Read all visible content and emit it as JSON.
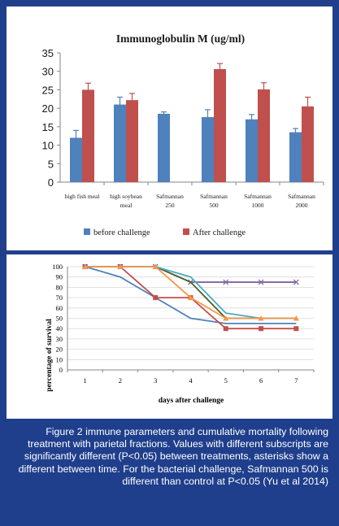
{
  "chart_data": [
    {
      "type": "bar",
      "title": "Immunoglobulin M (ug/ml)",
      "categories": [
        "high fish meal",
        "high soybean meal",
        "Safmannan 250",
        "Safmannan 500",
        "Safmannan 1000",
        "Safmannan 2000"
      ],
      "category_tick_labels": [
        [
          "high fish meal"
        ],
        [
          "high soybean",
          "meal"
        ],
        [
          "Safmannan",
          "250"
        ],
        [
          "Safmannan",
          "500"
        ],
        [
          "Safmannan",
          "1000"
        ],
        [
          "Safmannan",
          "2000"
        ]
      ],
      "series": [
        {
          "name": "before challenge",
          "color": "#4f81bd",
          "values": [
            12,
            21,
            18.5,
            17.6,
            17,
            13.5
          ],
          "errors": [
            2,
            2,
            0.5,
            2,
            1.3,
            1
          ]
        },
        {
          "name": "After challenge",
          "color": "#c0504d",
          "values": [
            25,
            22.2,
            null,
            30.6,
            25.1,
            20.5
          ],
          "errors": [
            1.8,
            1.8,
            null,
            1.5,
            1.8,
            2.5
          ]
        }
      ],
      "ylim": [
        0,
        35
      ],
      "yticks": [
        0,
        5,
        10,
        15,
        20,
        25,
        30,
        35
      ],
      "legend_position": "bottom",
      "grid": false
    },
    {
      "type": "line",
      "xlabel": "days after challenge",
      "ylabel": "percentage of survival",
      "x": [
        1,
        2,
        3,
        4,
        5,
        6,
        7
      ],
      "ylim": [
        0,
        100
      ],
      "yticks": [
        0,
        10,
        20,
        30,
        40,
        50,
        60,
        70,
        80,
        90,
        100
      ],
      "grid": true,
      "series": [
        {
          "color": "#4f81bd",
          "marker": "none",
          "values": [
            100,
            90,
            70,
            50,
            45,
            45,
            45
          ]
        },
        {
          "color": "#c0504d",
          "marker": "square",
          "values": [
            100,
            100,
            70,
            70,
            40,
            40,
            40
          ]
        },
        {
          "color": "#8064a2",
          "marker": "x",
          "values": [
            100,
            100,
            100,
            85,
            85,
            85,
            85
          ]
        },
        {
          "color": "#4f6228",
          "marker": "none",
          "values": [
            100,
            100,
            100,
            85,
            50,
            50,
            50
          ]
        },
        {
          "color": "#4bacc6",
          "marker": "none",
          "values": [
            100,
            100,
            100,
            90,
            55,
            50,
            50
          ]
        },
        {
          "color": "#f79646",
          "marker": "triangle",
          "values": [
            100,
            100,
            100,
            70,
            50,
            50,
            50
          ]
        }
      ]
    }
  ],
  "caption": "Figure 2 immune parameters and cumulative mortality following treatment with parietal fractions. Values with different subscripts are significantly different (P<0.05) between treatments, asterisks show a different between time. For the bacterial challenge, Safmannan 500 is different than control at P<0.05 (Yu et al 2014)"
}
